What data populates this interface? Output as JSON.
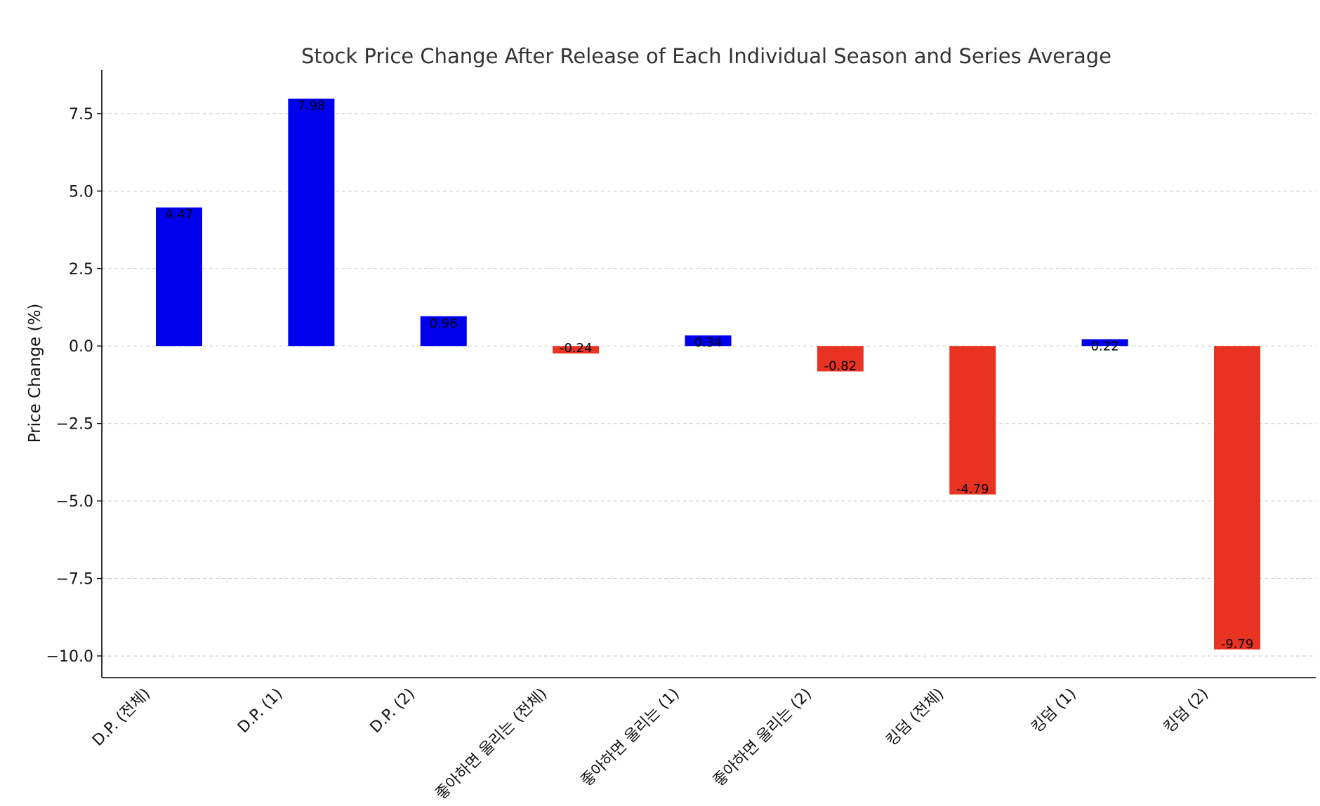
{
  "chart_data": {
    "type": "bar",
    "title": "Stock Price Change After Release of Each Individual Season and Series Average",
    "ylabel": "Price Change (%)",
    "xlabel": "",
    "categories": [
      "D.P. (전체)",
      "D.P. (1)",
      "D.P. (2)",
      "좋아하면 울리는 (전체)",
      "좋아하면 울리는 (1)",
      "좋아하면 울리는 (2)",
      "킹덤 (전체)",
      "킹덤 (1)",
      "킹덤 (2)"
    ],
    "values": [
      4.47,
      7.98,
      0.96,
      -0.24,
      0.34,
      -0.82,
      -4.79,
      0.22,
      -9.79
    ],
    "value_labels": [
      "4.47",
      "7.98",
      "0.96",
      "-0.24",
      "0.34",
      "-0.82",
      "-4.79",
      "0.22",
      "-9.79"
    ],
    "ylim": [
      -10.7,
      8.9
    ],
    "yticks": [
      7.5,
      5.0,
      2.5,
      0.0,
      -2.5,
      -5.0,
      -7.5,
      -10.0
    ],
    "ytick_labels": [
      "7.5",
      "5.0",
      "2.5",
      "0.0",
      "−2.5",
      "−5.0",
      "−7.5",
      "−10.0"
    ],
    "grid": true,
    "colors": {
      "positive": "#0000ee",
      "negative": "#e83323"
    }
  }
}
